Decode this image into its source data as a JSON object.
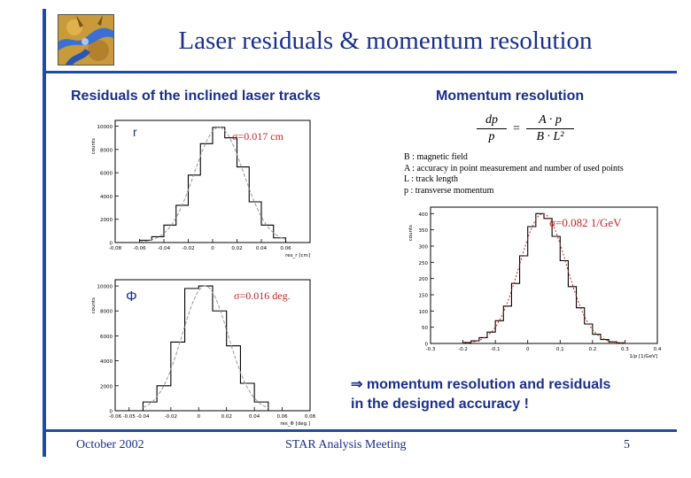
{
  "slide": {
    "title": "Laser residuals & momentum resolution",
    "left_heading": "Residuals of the inclined laser tracks",
    "right_heading": "Momentum resolution",
    "conclusion_line1": "⇒ momentum resolution and residuals",
    "conclusion_line2": "in the designed accuracy !",
    "footer_date": "October 2002",
    "footer_meeting": "STAR Analysis Meeting",
    "page_number": "5",
    "accent_color": "#1f4aa8",
    "text_color": "#1a2f8c",
    "fit_color": "#cc2222"
  },
  "formula": {
    "lhs_num": "dp",
    "lhs_den": "p",
    "rhs_num": "A · p",
    "rhs_den": "B · L²"
  },
  "legend": [
    "B : magnetic field",
    "A : accuracy in point measurement and number of used points",
    "L : track length",
    "p : transverse momentum"
  ],
  "chart_data": [
    {
      "type": "bar",
      "label": "r",
      "annotation": "σ=0.017 cm",
      "ylabel": "counts",
      "xlabel": "res_r [cm]",
      "xlim": [
        -0.08,
        0.08
      ],
      "ylim": [
        0,
        10500
      ],
      "xticks": [
        "-0.08",
        "-0.06",
        "-0.04",
        "-0.02",
        "0",
        "0.02",
        "0.04",
        "0.06"
      ],
      "yticks": [
        "0",
        "2000",
        "4000",
        "6000",
        "8000",
        "10000"
      ],
      "bin_edges": [
        -0.06,
        -0.05,
        -0.04,
        -0.03,
        -0.02,
        -0.01,
        0,
        0.01,
        0.02,
        0.03,
        0.04,
        0.05,
        0.06
      ],
      "values": [
        200,
        500,
        1500,
        3200,
        5800,
        8500,
        9900,
        9000,
        6500,
        3500,
        1500,
        400
      ]
    },
    {
      "type": "bar",
      "label": "Φ",
      "annotation": "σ=0.016 deg.",
      "ylabel": "counts",
      "xlabel": "res_Φ [deg.]",
      "xlim": [
        -0.06,
        0.08
      ],
      "ylim": [
        0,
        10500
      ],
      "xticks": [
        "-0.06",
        "-0.05",
        "-0.04",
        "-0.02",
        "0",
        "0.02",
        "0.04",
        "0.06",
        "0.08"
      ],
      "yticks": [
        "0",
        "2000",
        "4000",
        "6000",
        "8000",
        "10000"
      ],
      "bin_edges": [
        -0.04,
        -0.03,
        -0.02,
        -0.01,
        0,
        0.01,
        0.02,
        0.03,
        0.04,
        0.05
      ],
      "values": [
        700,
        2000,
        5500,
        9800,
        10000,
        8000,
        5200,
        2200,
        700
      ]
    },
    {
      "type": "bar",
      "annotation": "σ=0.082 1/GeV",
      "ylabel": "counts",
      "xlabel": "1/p [1/GeV]",
      "xlim": [
        -0.3,
        0.4
      ],
      "ylim": [
        0,
        420
      ],
      "xticks": [
        "-0.3",
        "-0.2",
        "-0.1",
        "0",
        "0.1",
        "0.2",
        "0.3",
        "0.4"
      ],
      "yticks": [
        "0",
        "50",
        "100",
        "150",
        "200",
        "250",
        "300",
        "350",
        "400"
      ],
      "bin_edges": [
        -0.2,
        -0.175,
        -0.15,
        -0.125,
        -0.1,
        -0.075,
        -0.05,
        -0.025,
        0,
        0.025,
        0.05,
        0.075,
        0.1,
        0.125,
        0.15,
        0.175,
        0.2,
        0.225,
        0.25,
        0.275,
        0.3
      ],
      "values": [
        3,
        8,
        18,
        35,
        70,
        115,
        185,
        270,
        360,
        400,
        385,
        330,
        255,
        175,
        110,
        60,
        28,
        12,
        5,
        2
      ]
    }
  ]
}
